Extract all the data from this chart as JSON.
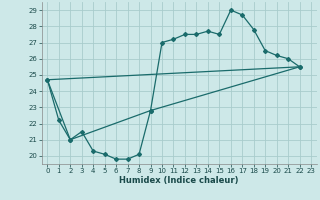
{
  "xlabel": "Humidex (Indice chaleur)",
  "background_color": "#cde8e8",
  "grid_color": "#a8cccc",
  "line_color": "#1a6b6b",
  "xlim": [
    -0.5,
    23.5
  ],
  "ylim": [
    19.5,
    29.5
  ],
  "xticks": [
    0,
    1,
    2,
    3,
    4,
    5,
    6,
    7,
    8,
    9,
    10,
    11,
    12,
    13,
    14,
    15,
    16,
    17,
    18,
    19,
    20,
    21,
    22,
    23
  ],
  "yticks": [
    20,
    21,
    22,
    23,
    24,
    25,
    26,
    27,
    28,
    29
  ],
  "series1": [
    [
      0,
      24.7
    ],
    [
      1,
      22.2
    ],
    [
      2,
      21.0
    ],
    [
      3,
      21.5
    ],
    [
      4,
      20.3
    ],
    [
      5,
      20.1
    ],
    [
      6,
      19.8
    ],
    [
      7,
      19.8
    ],
    [
      8,
      20.1
    ],
    [
      9,
      22.8
    ],
    [
      10,
      27.0
    ],
    [
      11,
      27.2
    ],
    [
      12,
      27.5
    ],
    [
      13,
      27.5
    ],
    [
      14,
      27.7
    ],
    [
      15,
      27.5
    ],
    [
      16,
      29.0
    ],
    [
      17,
      28.7
    ],
    [
      18,
      27.8
    ],
    [
      19,
      26.5
    ],
    [
      20,
      26.2
    ],
    [
      21,
      26.0
    ],
    [
      22,
      25.5
    ]
  ],
  "series2_x": [
    0,
    2,
    9,
    22
  ],
  "series2_y": [
    24.7,
    21.0,
    22.8,
    25.5
  ],
  "series3_x": [
    0,
    22
  ],
  "series3_y": [
    24.7,
    25.5
  ]
}
